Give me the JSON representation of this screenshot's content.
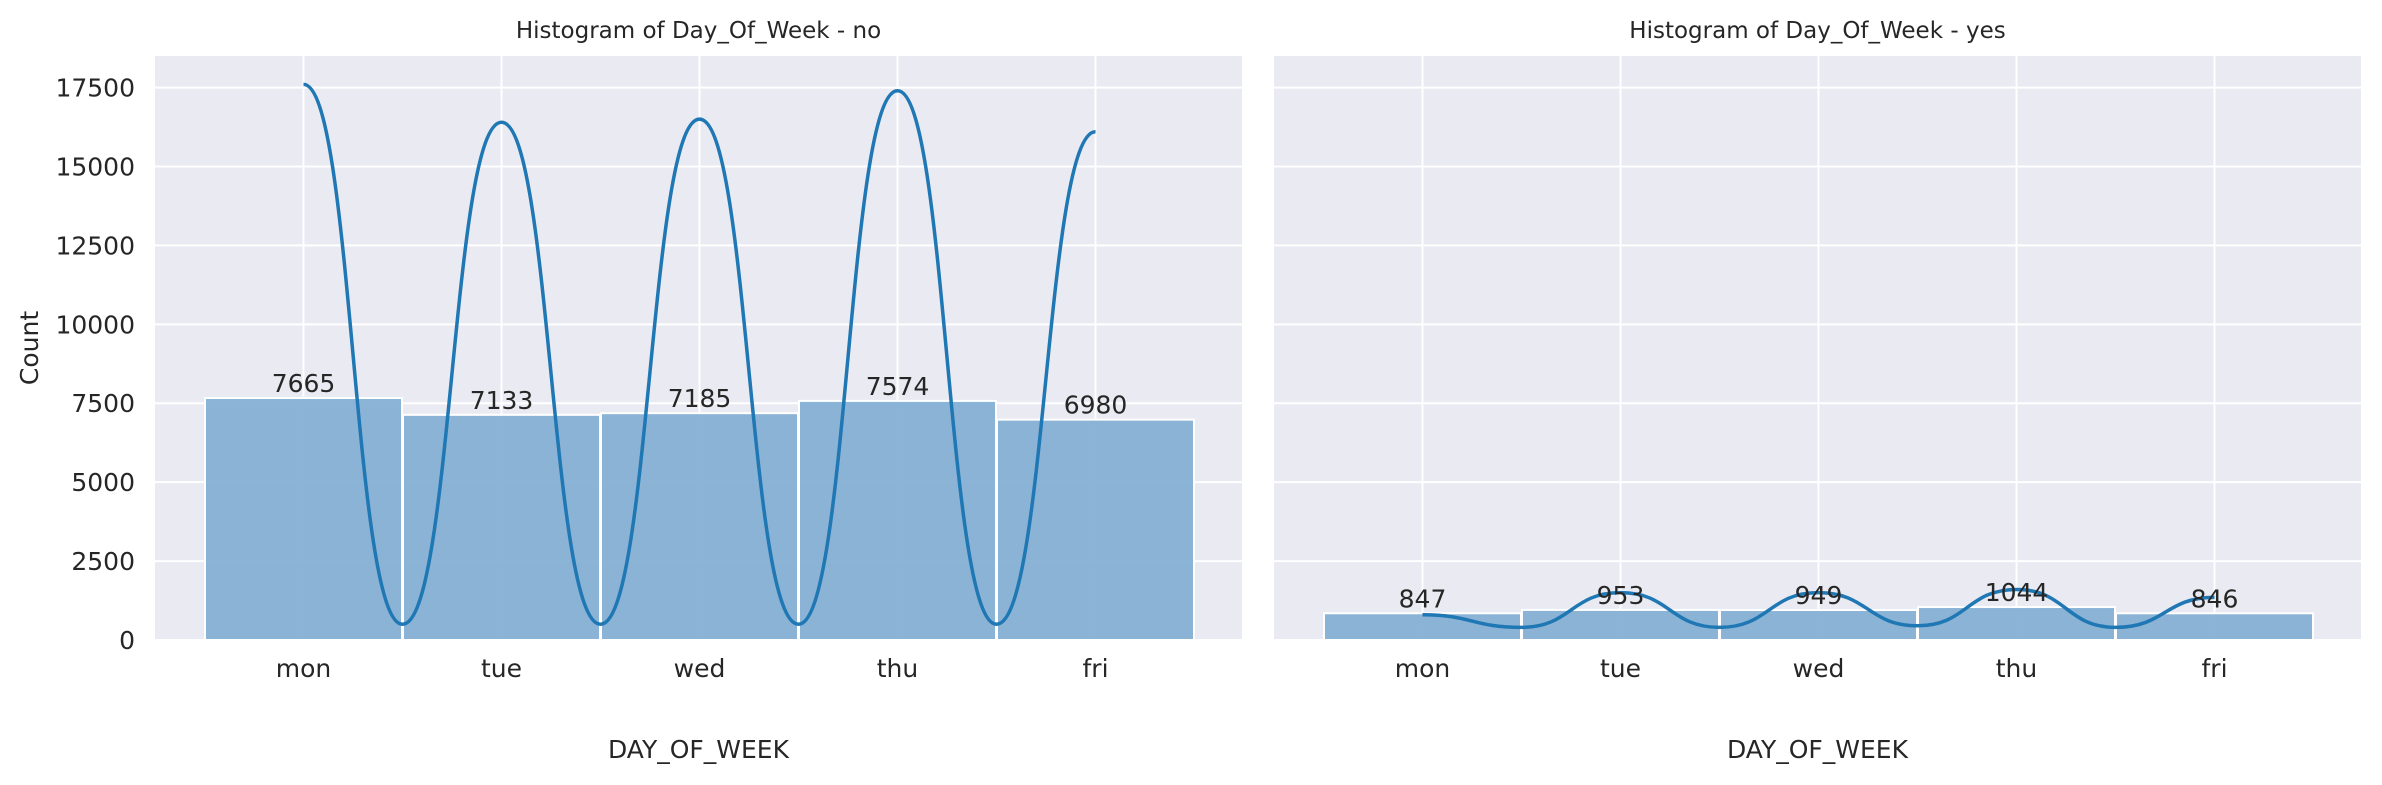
{
  "chart_data": [
    {
      "type": "bar",
      "title": "Histogram of Day_Of_Week - no",
      "xlabel": "DAY_OF_WEEK",
      "ylabel": "Count",
      "categories": [
        "mon",
        "tue",
        "wed",
        "thu",
        "fri"
      ],
      "values": [
        7665,
        7133,
        7185,
        7574,
        6980
      ],
      "data_labels": [
        "7665",
        "7133",
        "7185",
        "7574",
        "6980"
      ],
      "kde_line": {
        "peaks": [
          17600,
          16400,
          16500,
          17400,
          16100
        ],
        "troughs": [
          500,
          500,
          500,
          500
        ],
        "color": "#1f77b4"
      },
      "ylim": [
        0,
        18500
      ],
      "yticks": [
        0,
        2500,
        5000,
        7500,
        10000,
        12500,
        15000,
        17500
      ],
      "ytick_labels": [
        "0",
        "2500",
        "5000",
        "7500",
        "10000",
        "12500",
        "15000",
        "17500"
      ],
      "grid": true,
      "bar_color": "#85b0d4",
      "background_color": "#eaeaf2"
    },
    {
      "type": "bar",
      "title": "Histogram of Day_Of_Week - yes",
      "xlabel": "DAY_OF_WEEK",
      "ylabel": "",
      "categories": [
        "mon",
        "tue",
        "wed",
        "thu",
        "fri"
      ],
      "values": [
        847,
        953,
        949,
        1044,
        846
      ],
      "data_labels": [
        "847",
        "953",
        "949",
        "1044",
        "846"
      ],
      "kde_line": {
        "peaks": [
          800,
          1500,
          1500,
          1600,
          1350
        ],
        "troughs": [
          400,
          400,
          450,
          400
        ],
        "color": "#1f77b4"
      },
      "ylim": [
        0,
        18500
      ],
      "yticks": [
        0,
        2500,
        5000,
        7500,
        10000,
        12500,
        15000,
        17500
      ],
      "ytick_labels": [],
      "grid": true,
      "bar_color": "#85b0d4",
      "background_color": "#eaeaf2"
    }
  ]
}
